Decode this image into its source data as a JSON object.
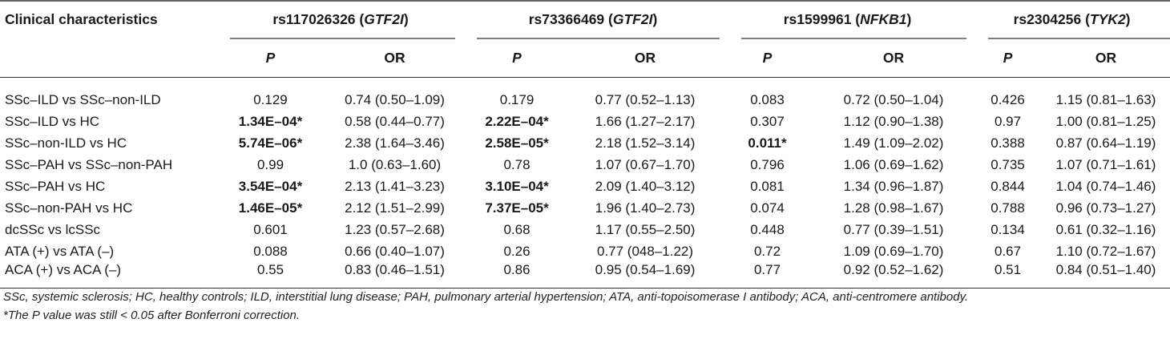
{
  "header": {
    "clinical": "Clinical characteristics",
    "groups": [
      {
        "snp": "rs117026326 (",
        "gene": "GTF2I",
        "close": ")"
      },
      {
        "snp": "rs73366469 (",
        "gene": "GTF2I",
        "close": ")"
      },
      {
        "snp": "rs1599961 (",
        "gene": "NFKB1",
        "close": ")"
      },
      {
        "snp": "rs2304256 (",
        "gene": "TYK2",
        "close": ")"
      }
    ],
    "p_label": "P",
    "or_label": "OR"
  },
  "rows": [
    {
      "label": "SSc–ILD vs SSc–non-ILD",
      "cells": [
        {
          "p": "0.129",
          "or": "0.74 (0.50–1.09)",
          "bold": false
        },
        {
          "p": "0.179",
          "or": "0.77 (0.52–1.13)",
          "bold": false
        },
        {
          "p": "0.083",
          "or": "0.72 (0.50–1.04)",
          "bold": false
        },
        {
          "p": "0.426",
          "or": "1.15 (0.81–1.63)",
          "bold": false
        }
      ]
    },
    {
      "label": "SSc–ILD vs HC",
      "cells": [
        {
          "p": "1.34E–04*",
          "or": "0.58 (0.44–0.77)",
          "bold": true
        },
        {
          "p": "2.22E–04*",
          "or": "1.66 (1.27–2.17)",
          "bold": true
        },
        {
          "p": "0.307",
          "or": "1.12 (0.90–1.38)",
          "bold": false
        },
        {
          "p": "0.97",
          "or": "1.00 (0.81–1.25)",
          "bold": false
        }
      ]
    },
    {
      "label": "SSc–non-ILD vs HC",
      "cells": [
        {
          "p": "5.74E–06*",
          "or": "2.38 (1.64–3.46)",
          "bold": true
        },
        {
          "p": "2.58E–05*",
          "or": "2.18 (1.52–3.14)",
          "bold": true
        },
        {
          "p": "0.011*",
          "or": "1.49 (1.09–2.02)",
          "bold": true
        },
        {
          "p": "0.388",
          "or": "0.87 (0.64–1.19)",
          "bold": false
        }
      ]
    },
    {
      "label": "SSc–PAH vs SSc–non-PAH",
      "cells": [
        {
          "p": "0.99",
          "or": "1.0 (0.63–1.60)",
          "bold": false
        },
        {
          "p": "0.78",
          "or": "1.07 (0.67–1.70)",
          "bold": false
        },
        {
          "p": "0.796",
          "or": "1.06 (0.69–1.62)",
          "bold": false
        },
        {
          "p": "0.735",
          "or": "1.07 (0.71–1.61)",
          "bold": false
        }
      ]
    },
    {
      "label": "SSc–PAH vs HC",
      "cells": [
        {
          "p": "3.54E–04*",
          "or": "2.13 (1.41–3.23)",
          "bold": true
        },
        {
          "p": "3.10E–04*",
          "or": "2.09 (1.40–3.12)",
          "bold": true
        },
        {
          "p": "0.081",
          "or": "1.34 (0.96–1.87)",
          "bold": false
        },
        {
          "p": "0.844",
          "or": "1.04 (0.74–1.46)",
          "bold": false
        }
      ]
    },
    {
      "label": "SSc–non-PAH vs HC",
      "cells": [
        {
          "p": "1.46E–05*",
          "or": "2.12 (1.51–2.99)",
          "bold": true
        },
        {
          "p": "7.37E–05*",
          "or": "1.96 (1.40–2.73)",
          "bold": true
        },
        {
          "p": "0.074",
          "or": "1.28 (0.98–1.67)",
          "bold": false
        },
        {
          "p": "0.788",
          "or": "0.96 (0.73–1.27)",
          "bold": false
        }
      ]
    },
    {
      "label": "dcSSc vs lcSSc",
      "cells": [
        {
          "p": "0.601",
          "or": "1.23 (0.57–2.68)",
          "bold": false
        },
        {
          "p": "0.68",
          "or": "1.17 (0.55–2.50)",
          "bold": false
        },
        {
          "p": "0.448",
          "or": "0.77 (0.39–1.51)",
          "bold": false
        },
        {
          "p": "0.134",
          "or": "0.61 (0.32–1.16)",
          "bold": false
        }
      ]
    },
    {
      "label": "ATA  (+) vs ATA  (–)",
      "cells": [
        {
          "p": "0.088",
          "or": "0.66 (0.40–1.07)",
          "bold": false
        },
        {
          "p": "0.26",
          "or": "0.77 (048–1.22)",
          "bold": false
        },
        {
          "p": "0.72",
          "or": "1.09 (0.69–1.70)",
          "bold": false
        },
        {
          "p": "0.67",
          "or": "1.10 (0.72–1.67)",
          "bold": false
        }
      ]
    },
    {
      "label": "ACA  (+) vs ACA  (–)",
      "cells": [
        {
          "p": "0.55",
          "or": "0.83 (0.46–1.51)",
          "bold": false
        },
        {
          "p": "0.86",
          "or": "0.95 (0.54–1.69)",
          "bold": false
        },
        {
          "p": "0.77",
          "or": "0.92 (0.52–1.62)",
          "bold": false
        },
        {
          "p": "0.51",
          "or": "0.84 (0.51–1.40)",
          "bold": false
        }
      ]
    }
  ],
  "footnotes": {
    "abbrev": "SSc, systemic sclerosis; HC, healthy controls; ILD, interstitial lung disease; PAH, pulmonary arterial hypertension; ATA, anti-topoisomerase I antibody; ACA, anti-centromere antibody.",
    "star": "*The P value was still < 0.05 after Bonferroni correction."
  }
}
